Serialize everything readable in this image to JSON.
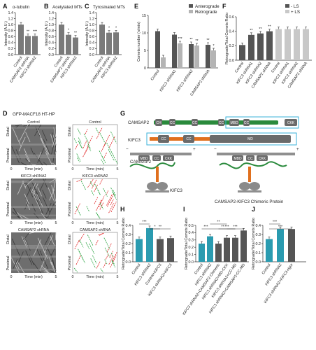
{
  "panels": [
    {
      "letter": "A",
      "title": "α-tubulin",
      "ylabel": "Intensity (A.U.)"
    },
    {
      "letter": "B",
      "title": "Acetylated MTs",
      "ylabel": "Intensity (A.U.)"
    },
    {
      "letter": "C",
      "title": "Tyrosinated MTs",
      "ylabel": "Intensity (A.U.)"
    },
    {
      "letter": "D",
      "title": "GFP-MACF18 HT-HP"
    },
    {
      "letter": "E",
      "title": "",
      "ylabel": "Comets number (n/min)"
    },
    {
      "letter": "F",
      "title": "",
      "ylabel": "Retrograde/Total Comets Ratio"
    },
    {
      "letter": "G",
      "title": ""
    },
    {
      "letter": "H",
      "title": "",
      "ylabel": "Retrograde/Total Comets Ratio"
    },
    {
      "letter": "I",
      "title": "",
      "ylabel": "Retrograde/Total Comets Ratio"
    },
    {
      "letter": "J",
      "title": "",
      "ylabel": "Retrograde/Total Comets Ratio"
    }
  ],
  "chart_data": [
    {
      "panel": "A",
      "type": "bar",
      "ylim": [
        0,
        1.4
      ],
      "yticks": [
        "0.0",
        "0.2",
        "0.4",
        "0.6",
        "0.8",
        "1.0",
        "1.2",
        "1.4"
      ],
      "categories": [
        "Control",
        "CAMSAP2 shRNA",
        "KIFC3 shRNA2"
      ],
      "values": [
        1.0,
        0.62,
        0.62
      ],
      "stars": [
        "",
        "**",
        "***"
      ],
      "colors": [
        "#7a7a7a",
        "#7a7a7a",
        "#7a7a7a"
      ]
    },
    {
      "panel": "B",
      "type": "bar",
      "ylim": [
        0,
        1.4
      ],
      "yticks": [
        "0.0",
        "0.2",
        "0.4",
        "0.6",
        "0.8",
        "1.0",
        "1.2",
        "1.4"
      ],
      "categories": [
        "Control",
        "CAMSAP2 shRNA",
        "KIFC3 shRNA2"
      ],
      "values": [
        1.0,
        0.66,
        0.57
      ],
      "stars": [
        "",
        "*",
        "**"
      ],
      "colors": [
        "#7a7a7a",
        "#7a7a7a",
        "#7a7a7a"
      ]
    },
    {
      "panel": "C",
      "type": "bar",
      "ylim": [
        0,
        1.4
      ],
      "yticks": [
        "0.0",
        "0.2",
        "0.4",
        "0.6",
        "0.8",
        "1.0",
        "1.2",
        "1.4"
      ],
      "categories": [
        "Control",
        "CAMSAP2 shRNA",
        "KIFC3 shRNA2"
      ],
      "values": [
        1.0,
        0.73,
        0.74
      ],
      "stars": [
        "",
        "*",
        "*"
      ],
      "colors": [
        "#7a7a7a",
        "#7a7a7a",
        "#7a7a7a"
      ]
    },
    {
      "panel": "E",
      "type": "bar",
      "ylim": [
        0,
        15
      ],
      "yticks": [
        "0",
        "5",
        "10",
        "15"
      ],
      "categories": [
        "Control",
        "KIFC3 shRNA1",
        "KIFC3 shRNA2",
        "CAMSAP2 shRNA"
      ],
      "series": [
        {
          "name": "Anterograde",
          "color": "#555555",
          "values": [
            10.5,
            9.5,
            6.8,
            6.6
          ]
        },
        {
          "name": "Retrograde",
          "color": "#b4b4b4",
          "values": [
            3.0,
            7.0,
            6.4,
            5.0
          ]
        }
      ],
      "stars_a": [
        "",
        "",
        "**",
        "**"
      ],
      "stars_r": [
        "",
        "***",
        "**",
        "*"
      ]
    },
    {
      "panel": "F",
      "type": "bar",
      "ylim": [
        0,
        0.6
      ],
      "yticks": [
        "0.0",
        "0.2",
        "0.4",
        "0.6"
      ],
      "categories": [
        "Control",
        "KIFC3 shRNA1",
        "KIFC3 shRNA2",
        "CAMSAP2 shRNA",
        "Control",
        "KIFC3 shRNA1",
        "KIFC3 shRNA2",
        "CAMSAP2 shRNA"
      ],
      "values": [
        0.21,
        0.35,
        0.37,
        0.4,
        0.43,
        0.43,
        0.43,
        0.43
      ],
      "stars": [
        "",
        "**",
        "**",
        "**",
        "",
        "",
        "",
        ""
      ],
      "colors": [
        "#555555",
        "#555555",
        "#555555",
        "#555555",
        "#c8c8c8",
        "#c8c8c8",
        "#c8c8c8",
        "#c8c8c8"
      ],
      "legend": [
        "- LS",
        "+ LS"
      ]
    },
    {
      "panel": "H",
      "type": "bar",
      "ylim": [
        0,
        0.4
      ],
      "yticks": [
        "0.0",
        "0.1",
        "0.2",
        "0.3",
        "0.4"
      ],
      "categories": [
        "Control",
        "KIFC3 shRNA2",
        "Control+KIFC3",
        "KIFC3 shRNA2+KIFC3"
      ],
      "values": [
        0.25,
        0.37,
        0.25,
        0.26
      ],
      "stars": [
        "",
        "",
        "",
        ""
      ],
      "colors": [
        "#2a9bb0",
        "#2a9bb0",
        "#555555",
        "#555555"
      ],
      "brackets": [
        {
          "from": 0,
          "to": 1,
          "label": "***",
          "level": 0
        },
        {
          "from": 1,
          "to": 2,
          "label": "*",
          "level": 1
        },
        {
          "from": 1,
          "to": 3,
          "label": "**",
          "level": 1
        }
      ]
    },
    {
      "panel": "I",
      "type": "bar",
      "ylim": [
        0,
        0.5
      ],
      "yticks": [
        "0.0",
        "0.1",
        "0.2",
        "0.3",
        "0.4",
        "0.5"
      ],
      "categories": [
        "Control",
        "KIFC3 shRNA2",
        "KIFC3 shRNA2+CAMSAP2 Chimeric",
        "KIFC3 shRNA2+MD-CKK",
        "KIFC3 shRNA2+CC-MD",
        "KIFC3 shRNA2+CAMSAP2-CC-MD"
      ],
      "values": [
        0.25,
        0.35,
        0.25,
        0.33,
        0.33,
        0.43
      ],
      "stars": [
        "",
        "",
        "",
        "",
        "",
        ""
      ],
      "colors": [
        "#2a9bb0",
        "#2a9bb0",
        "#555555",
        "#555555",
        "#555555",
        "#555555"
      ],
      "brackets": [
        {
          "from": 0,
          "to": 1,
          "label": "***",
          "level": 1
        },
        {
          "from": 1,
          "to": 3,
          "label": "**",
          "level": 0
        },
        {
          "from": 1,
          "to": 4,
          "label": "**",
          "level": 1
        },
        {
          "from": 2,
          "to": 4,
          "label": "***",
          "level": 1
        },
        {
          "from": 3,
          "to": 5,
          "label": "***",
          "level": 1
        }
      ]
    },
    {
      "panel": "J",
      "type": "bar",
      "ylim": [
        0,
        0.4
      ],
      "yticks": [
        "0.0",
        "0.1",
        "0.2",
        "0.3",
        "0.4"
      ],
      "categories": [
        "Control",
        "KIFC3 shRNA2",
        "KIFC3 shRNA2+KIFC3-rigor"
      ],
      "values": [
        0.25,
        0.36,
        0.36
      ],
      "stars": [
        "",
        "",
        ""
      ],
      "colors": [
        "#2a9bb0",
        "#2a9bb0",
        "#555555"
      ],
      "brackets": [
        {
          "from": 0,
          "to": 1,
          "label": "***",
          "level": 0
        },
        {
          "from": 0,
          "to": 2,
          "label": "***",
          "level": 1
        }
      ]
    }
  ],
  "kymographs": {
    "xlabel": "Time (min)",
    "x_start": "0",
    "x_end": "5",
    "distal": "Distal",
    "proximal": "Proximal",
    "titles": [
      "Control",
      "KIFC3 shRNA2",
      "CAMSAP2 shRNA"
    ]
  },
  "legend_e": {
    "anterograde": "Anterograde",
    "retrograde": "Retrograde"
  },
  "schematic": {
    "camsap2": "CAMSAP2",
    "kifc3": "KIFC3",
    "camsap2_domains": [
      "CH",
      "CC",
      "CC",
      "CC",
      "MBD",
      "CC",
      "CKK"
    ],
    "kifc3_domains": [
      "CC",
      "CC",
      "MD"
    ],
    "camsap2_small": "CAMSAP2",
    "camsap2_small_domains": [
      "MBD",
      "CC",
      "CKK"
    ],
    "chimeric_domains": [
      "MBD",
      "CC",
      "CKK"
    ],
    "kifc3_small": "KIFC3",
    "chimeric_label": "CAMSAP2-KIFC3 Chimeric Protein",
    "colors": {
      "camsap2": "#2a8a3c",
      "kifc3": "#e0701e",
      "box": "#3ab0d8",
      "domain": "#6a6a6a"
    }
  }
}
